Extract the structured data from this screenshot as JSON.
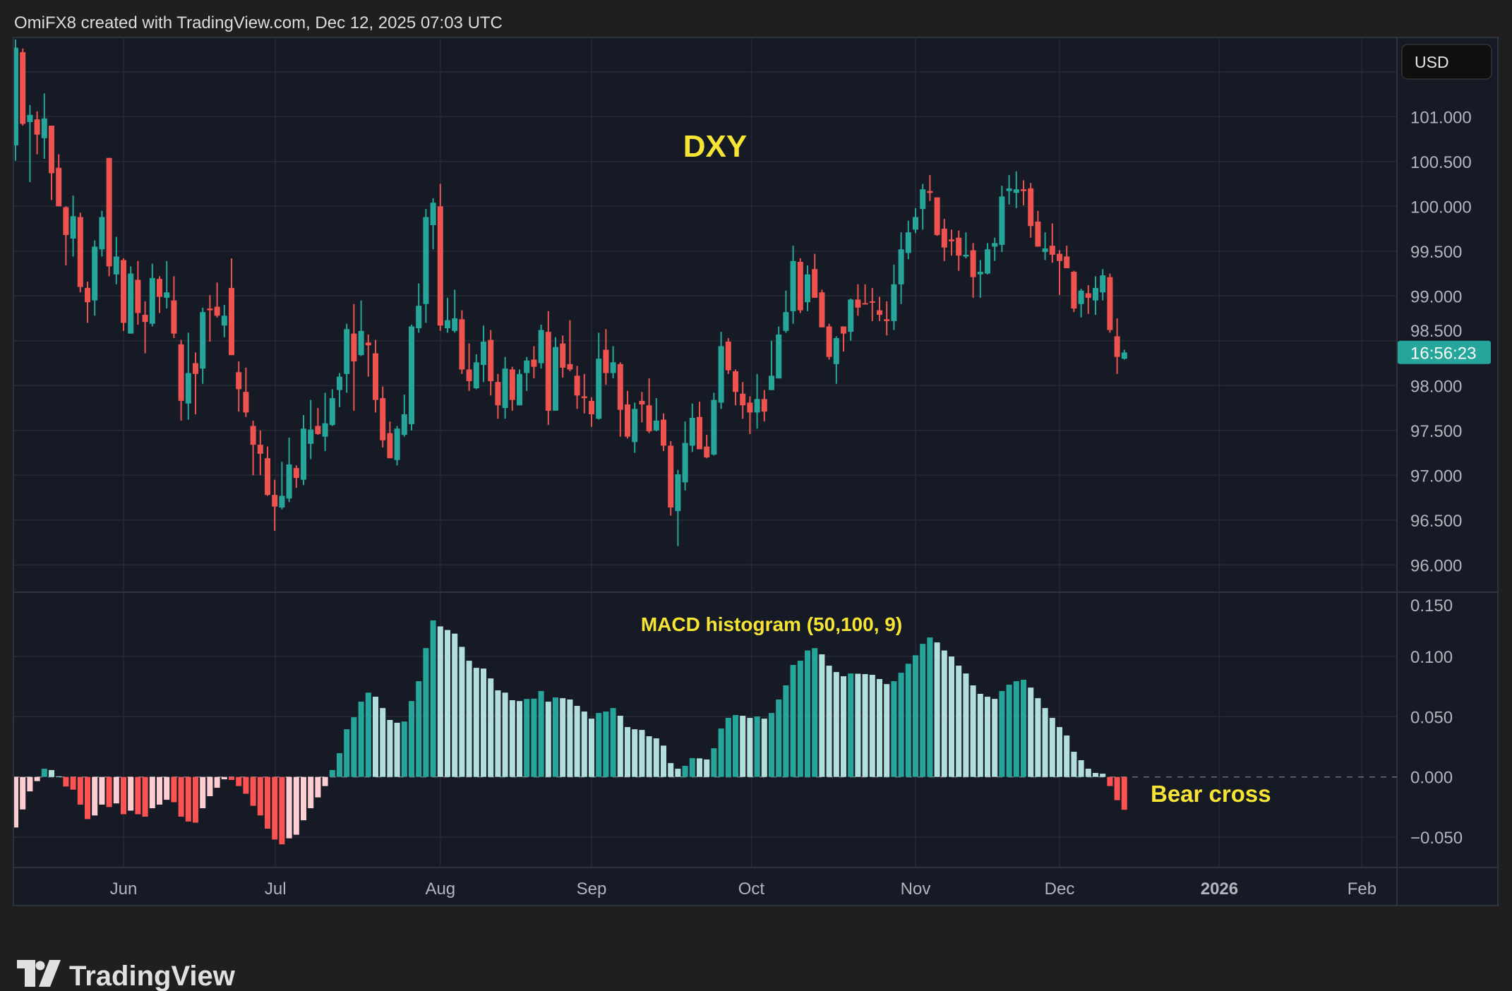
{
  "header": {
    "attribution": "OmiFX8 created with TradingView.com, Dec 12, 2025 07:03 UTC"
  },
  "currency_button": {
    "label": "USD"
  },
  "price_tag": {
    "label": "16:56:23",
    "color": "#26a69a"
  },
  "logo": {
    "text": "TradingView"
  },
  "colors": {
    "up": "#26a69a",
    "down": "#ef5350",
    "hist_up_rising": "#26a69a",
    "hist_up_falling": "#b2dfdb",
    "hist_down_falling": "#ff5252",
    "hist_down_rising": "#ffcdd2",
    "annotation": "#f7e434",
    "background": "#161a25",
    "grid": "#262a36"
  },
  "chart_data": [
    {
      "type": "candlestick",
      "title": "DXY",
      "ylim": [
        95.85,
        101.9
      ],
      "y_tick_labels": [
        "101.000",
        "100.500",
        "100.000",
        "99.500",
        "99.000",
        "98.500",
        "98.000",
        "97.500",
        "97.000",
        "96.500",
        "96.000"
      ],
      "y_ticks": [
        101,
        100.5,
        100,
        99.5,
        99,
        98.5,
        98,
        97.5,
        97,
        96.5,
        96
      ],
      "x_tick_labels": [
        "Jun",
        "Jul",
        "Aug",
        "Sep",
        "Oct",
        "Nov",
        "Dec",
        "2026",
        "Feb"
      ],
      "grid": true,
      "open": [
        100.68,
        101.72,
        100.94,
        100.97,
        100.76,
        100.9,
        100.43,
        99.99,
        99.64,
        99.88,
        99.09,
        98.95,
        99.52,
        100.54,
        99.24,
        99.4,
        98.58,
        99.18,
        98.79,
        98.69,
        99.19,
        98.98,
        98.95,
        98.46,
        97.8,
        98.25,
        98.19,
        98.86,
        98.88,
        98.67,
        99.09,
        98.15,
        97.93,
        97.55,
        97.34,
        97.19,
        96.78,
        96.64,
        96.74,
        97.08,
        96.95,
        97.35,
        97.55,
        97.43,
        97.56,
        97.95,
        98.13,
        98.58,
        98.34,
        98.48,
        98.36,
        97.86,
        97.47,
        97.17,
        97.45,
        97.57,
        98.64,
        98.91,
        99.79,
        100.0,
        98.64,
        98.61,
        98.74,
        98.18,
        97.97,
        98.23,
        98.51,
        98.04,
        97.75,
        98.18,
        97.78,
        98.14,
        98.29,
        98.25,
        98.6,
        97.72,
        98.47,
        98.24,
        98.11,
        97.88,
        97.83,
        97.63,
        98.4,
        98.14,
        98.24,
        97.79,
        97.37,
        97.83,
        97.78,
        97.5,
        97.62,
        97.33,
        96.6,
        96.92,
        97.33,
        97.65,
        97.32,
        97.23,
        97.81,
        98.49,
        98.16,
        97.91,
        97.81,
        97.7,
        97.85,
        97.95,
        98.08,
        98.61,
        98.83,
        99.38,
        98.93,
        99.3,
        99.04,
        98.66,
        98.24,
        98.66,
        98.6,
        98.96,
        98.92,
        98.94,
        98.84,
        98.74,
        98.72,
        99.13,
        99.48,
        99.74,
        99.97,
        100.17,
        100.1,
        99.75,
        99.63,
        99.65,
        99.44,
        99.51,
        99.24,
        99.25,
        99.55,
        99.57,
        100.17,
        100.15,
        100.19,
        100.2,
        99.83,
        99.49,
        99.56,
        99.47,
        99.44,
        99.27,
        98.91,
        99.03,
        98.95,
        99.04,
        99.21,
        98.55,
        98.3
      ],
      "high": [
        101.86,
        101.76,
        101.13,
        101.06,
        101.26,
        100.9,
        100.58,
        100.0,
        100.12,
        99.93,
        99.16,
        99.62,
        99.95,
        100.54,
        99.66,
        99.42,
        99.33,
        99.39,
        98.94,
        99.36,
        99.22,
        99.39,
        99.22,
        98.51,
        98.59,
        98.37,
        98.87,
        99.01,
        99.15,
        98.9,
        99.42,
        98.27,
        98.2,
        97.61,
        97.5,
        97.32,
        96.95,
        97.15,
        97.42,
        97.11,
        97.67,
        97.84,
        97.75,
        97.92,
        97.96,
        98.14,
        98.69,
        98.91,
        98.95,
        98.57,
        98.51,
        97.99,
        97.6,
        97.55,
        97.9,
        98.68,
        99.14,
        99.97,
        100.09,
        100.25,
        98.98,
        99.07,
        98.84,
        98.47,
        98.35,
        98.67,
        98.62,
        98.13,
        98.32,
        98.21,
        98.18,
        98.32,
        98.44,
        98.68,
        98.83,
        98.54,
        98.56,
        98.73,
        98.22,
        98.13,
        97.87,
        98.59,
        98.63,
        98.44,
        98.26,
        97.94,
        97.81,
        97.93,
        98.08,
        97.86,
        97.69,
        97.38,
        97.06,
        97.6,
        97.8,
        97.82,
        97.45,
        97.92,
        98.6,
        98.53,
        98.18,
        98.04,
        97.88,
        98.13,
        97.95,
        98.5,
        98.66,
        99.06,
        99.56,
        99.42,
        99.34,
        99.47,
        99.07,
        98.69,
        98.55,
        98.66,
        98.97,
        99.13,
        99.13,
        99.09,
        98.99,
        98.94,
        99.35,
        99.71,
        99.84,
        99.98,
        100.25,
        100.35,
        100.1,
        99.86,
        99.74,
        99.73,
        99.71,
        99.59,
        99.4,
        99.59,
        99.65,
        100.23,
        100.35,
        100.39,
        100.29,
        100.26,
        99.95,
        99.71,
        99.81,
        99.51,
        99.56,
        99.28,
        99.08,
        99.12,
        99.22,
        99.3,
        99.25,
        98.75,
        98.4
      ],
      "low": [
        100.51,
        100.9,
        100.27,
        100.58,
        100.53,
        100.07,
        100.0,
        99.34,
        99.44,
        99.04,
        98.7,
        98.78,
        99.44,
        99.22,
        99.13,
        98.61,
        98.58,
        98.68,
        98.36,
        98.66,
        98.81,
        98.86,
        98.53,
        97.61,
        97.62,
        97.68,
        98.02,
        98.49,
        98.76,
        98.54,
        98.34,
        97.71,
        97.65,
        97.0,
        97.0,
        96.77,
        96.38,
        96.62,
        96.7,
        96.86,
        96.89,
        97.18,
        97.45,
        97.27,
        97.55,
        97.76,
        97.92,
        97.72,
        98.33,
        98.1,
        97.7,
        97.31,
        97.19,
        97.11,
        97.43,
        97.5,
        98.59,
        98.7,
        99.52,
        98.61,
        98.59,
        98.59,
        98.13,
        97.94,
        97.96,
        98.04,
        97.89,
        97.63,
        97.63,
        97.72,
        97.78,
        97.94,
        98.08,
        98.19,
        97.56,
        97.72,
        98.09,
        98.16,
        97.74,
        97.69,
        97.54,
        97.62,
        98.01,
        98.08,
        97.43,
        97.41,
        97.25,
        97.59,
        97.47,
        97.49,
        97.27,
        96.55,
        96.21,
        96.83,
        97.26,
        97.29,
        97.19,
        97.22,
        97.74,
        98.13,
        97.78,
        97.63,
        97.46,
        97.52,
        97.6,
        97.95,
        98.08,
        98.59,
        98.69,
        98.81,
        98.83,
        98.98,
        98.65,
        98.29,
        98.02,
        98.38,
        98.5,
        98.78,
        98.91,
        98.72,
        98.72,
        98.56,
        98.62,
        98.91,
        99.41,
        99.7,
        99.74,
        100.06,
        99.67,
        99.39,
        99.45,
        99.28,
        99.42,
        98.98,
        98.98,
        99.24,
        99.39,
        99.49,
        100.02,
        99.98,
        100.01,
        99.65,
        99.55,
        99.4,
        99.37,
        99.01,
        99.31,
        98.82,
        98.76,
        98.8,
        98.79,
        98.95,
        98.59,
        98.13,
        98.29
      ],
      "close": [
        101.77,
        100.92,
        101.02,
        100.8,
        100.98,
        100.37,
        100.0,
        99.68,
        99.89,
        99.1,
        98.93,
        99.55,
        99.88,
        99.33,
        99.44,
        98.7,
        99.25,
        98.81,
        98.71,
        99.2,
        98.99,
        99.04,
        98.58,
        97.83,
        98.14,
        98.13,
        98.82,
        98.84,
        98.78,
        98.78,
        98.34,
        97.96,
        97.7,
        97.34,
        97.24,
        96.78,
        96.65,
        96.77,
        97.12,
        96.97,
        97.52,
        97.51,
        97.46,
        97.58,
        97.86,
        98.1,
        98.63,
        98.27,
        98.61,
        98.45,
        97.84,
        97.39,
        97.19,
        97.52,
        97.68,
        98.66,
        98.89,
        99.88,
        100.04,
        98.67,
        98.73,
        98.75,
        98.18,
        98.05,
        98.26,
        98.49,
        98.05,
        97.78,
        98.19,
        97.84,
        98.13,
        98.28,
        98.21,
        98.62,
        97.72,
        98.43,
        98.2,
        98.18,
        97.89,
        97.86,
        97.68,
        98.3,
        98.14,
        98.26,
        97.73,
        97.43,
        97.74,
        97.79,
        97.49,
        97.61,
        97.33,
        96.64,
        97.01,
        97.36,
        97.64,
        97.29,
        97.2,
        97.84,
        98.44,
        98.17,
        97.93,
        97.78,
        97.7,
        97.85,
        97.71,
        98.11,
        98.57,
        98.82,
        99.39,
        98.84,
        99.24,
        98.98,
        98.65,
        98.32,
        98.53,
        98.58,
        98.96,
        98.87,
        98.91,
        98.93,
        98.79,
        98.72,
        99.13,
        99.52,
        99.71,
        99.88,
        100.19,
        100.15,
        99.68,
        99.54,
        99.61,
        99.45,
        99.46,
        99.21,
        99.27,
        99.52,
        99.59,
        100.11,
        100.2,
        100.19,
        100.17,
        99.78,
        99.55,
        99.53,
        99.46,
        99.39,
        99.31,
        98.86,
        99.06,
        98.98,
        99.09,
        99.23,
        98.62,
        98.32,
        98.37
      ],
      "last_price": 98.37
    },
    {
      "type": "bar",
      "title": "MACD histogram (50,100, 9)",
      "ylim": [
        -0.065,
        0.153
      ],
      "y_tick_labels": [
        "0.150",
        "0.100",
        "0.050",
        "0.000",
        "−0.050"
      ],
      "y_ticks": [
        0.15,
        0.1,
        0.05,
        0,
        -0.05
      ],
      "values": [
        -0.042,
        -0.027,
        -0.012,
        -0.0035,
        0.0068,
        0.0057,
        0.0005,
        -0.008,
        -0.0106,
        -0.023,
        -0.035,
        -0.032,
        -0.023,
        -0.025,
        -0.022,
        -0.031,
        -0.028,
        -0.031,
        -0.033,
        -0.026,
        -0.023,
        -0.019,
        -0.021,
        -0.033,
        -0.037,
        -0.038,
        -0.026,
        -0.016,
        -0.009,
        -0.002,
        -0.0025,
        -0.0076,
        -0.014,
        -0.024,
        -0.032,
        -0.043,
        -0.052,
        -0.056,
        -0.051,
        -0.048,
        -0.036,
        -0.026,
        -0.017,
        -0.0076,
        0.0057,
        0.0197,
        0.0396,
        0.0496,
        0.0625,
        0.07,
        0.0666,
        0.0572,
        0.0473,
        0.045,
        0.046,
        0.063,
        0.0795,
        0.107,
        0.13,
        0.125,
        0.122,
        0.119,
        0.108,
        0.0965,
        0.0906,
        0.09,
        0.0818,
        0.0719,
        0.07,
        0.0637,
        0.063,
        0.0648,
        0.065,
        0.0713,
        0.0625,
        0.066,
        0.0654,
        0.0643,
        0.059,
        0.0543,
        0.0484,
        0.0531,
        0.0543,
        0.0572,
        0.0508,
        0.0414,
        0.0396,
        0.039,
        0.0338,
        0.032,
        0.026,
        0.0115,
        0.0068,
        0.0092,
        0.0156,
        0.0154,
        0.0145,
        0.0238,
        0.0402,
        0.049,
        0.0514,
        0.0508,
        0.049,
        0.0502,
        0.0484,
        0.0531,
        0.0643,
        0.076,
        0.093,
        0.0965,
        0.105,
        0.107,
        0.1018,
        0.0924,
        0.0871,
        0.0836,
        0.0859,
        0.0857,
        0.0854,
        0.0848,
        0.0813,
        0.0771,
        0.0795,
        0.0865,
        0.094,
        0.101,
        0.1105,
        0.1158,
        0.1117,
        0.105,
        0.1,
        0.0924,
        0.0859,
        0.076,
        0.069,
        0.0666,
        0.0648,
        0.0713,
        0.0766,
        0.0795,
        0.0807,
        0.0742,
        0.0654,
        0.0572,
        0.049,
        0.0414,
        0.0344,
        0.0209,
        0.0139,
        0.0068,
        0.0033,
        0.0027,
        -0.0076,
        -0.0193,
        -0.0273
      ],
      "annotation": "Bear cross"
    }
  ]
}
